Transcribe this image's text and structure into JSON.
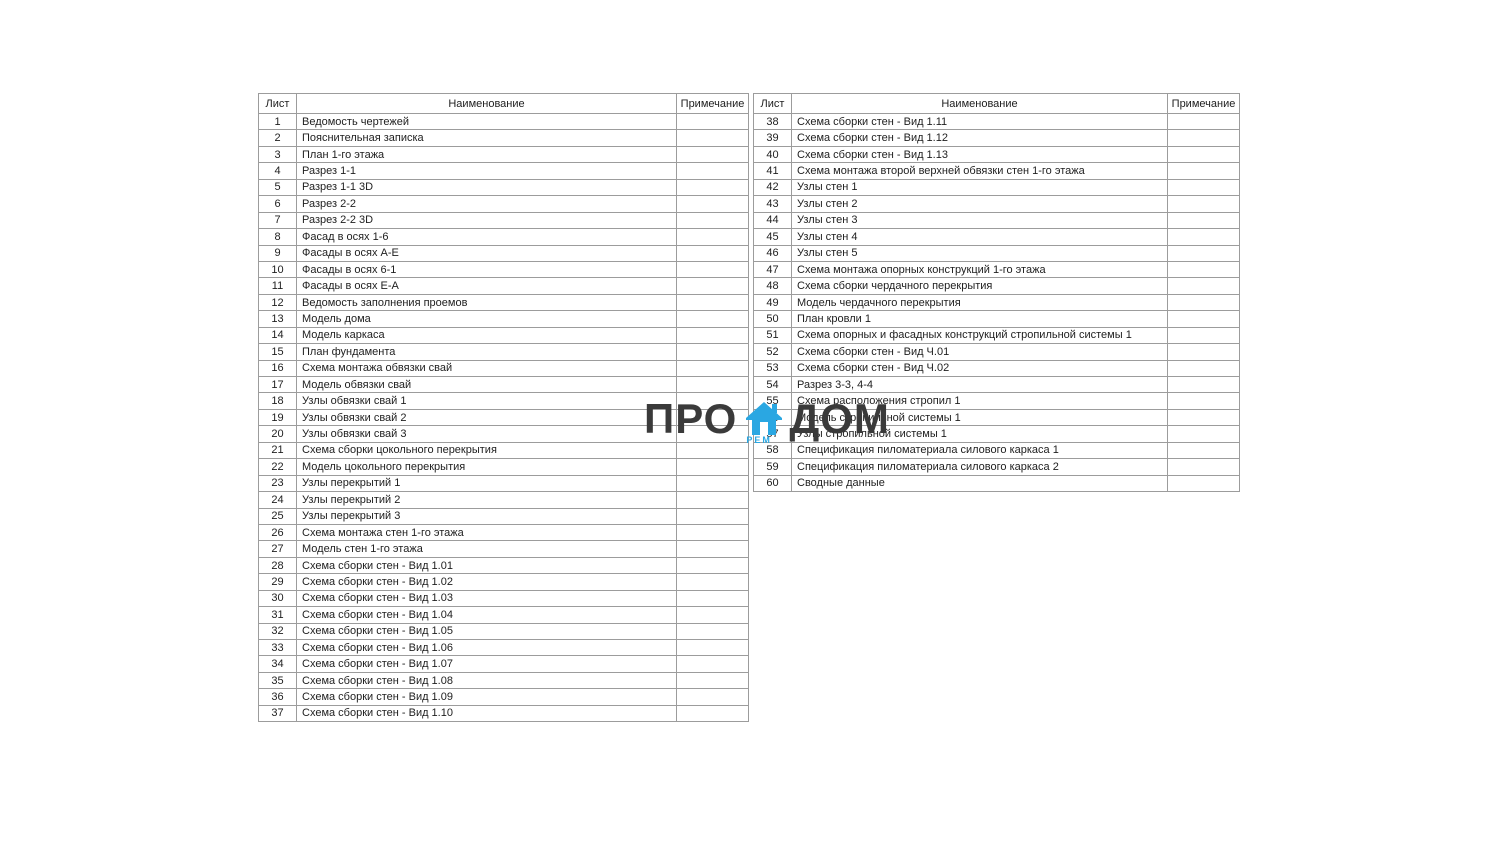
{
  "document": {
    "kind": "drawing-register",
    "background": "#ffffff",
    "border_color": "#9c9c9c",
    "text_color": "#1e1e1e"
  },
  "tables": [
    {
      "headers": [
        "Лист",
        "Наименование",
        "Примечание"
      ],
      "rows": [
        [
          "1",
          "Ведомость чертежей"
        ],
        [
          "2",
          "Пояснительная записка"
        ],
        [
          "3",
          "План 1-го этажа"
        ],
        [
          "4",
          "Разрез 1-1"
        ],
        [
          "5",
          "Разрез 1-1 3D"
        ],
        [
          "6",
          "Разрез 2-2"
        ],
        [
          "7",
          "Разрез 2-2 3D"
        ],
        [
          "8",
          "Фасад в осях 1-6"
        ],
        [
          "9",
          "Фасады в осях А-Е"
        ],
        [
          "10",
          "Фасады в осях 6-1"
        ],
        [
          "11",
          "Фасады в осях Е-А"
        ],
        [
          "12",
          "Ведомость заполнения проемов"
        ],
        [
          "13",
          "Модель дома"
        ],
        [
          "14",
          "Модель каркаса"
        ],
        [
          "15",
          "План фундамента"
        ],
        [
          "16",
          "Схема монтажа обвязки свай"
        ],
        [
          "17",
          "Модель обвязки свай"
        ],
        [
          "18",
          "Узлы обвязки свай 1"
        ],
        [
          "19",
          "Узлы обвязки свай 2"
        ],
        [
          "20",
          "Узлы обвязки свай 3"
        ],
        [
          "21",
          "Схема сборки цокольного перекрытия"
        ],
        [
          "22",
          "Модель цокольного перекрытия"
        ],
        [
          "23",
          "Узлы перекрытий 1"
        ],
        [
          "24",
          "Узлы  перекрытий 2"
        ],
        [
          "25",
          "Узлы  перекрытий 3"
        ],
        [
          "26",
          "Схема монтажа стен 1-го этажа"
        ],
        [
          "27",
          "Модель стен 1-го этажа"
        ],
        [
          "28",
          "Схема сборки стен - Вид 1.01"
        ],
        [
          "29",
          "Схема сборки стен - Вид 1.02"
        ],
        [
          "30",
          "Схема сборки стен - Вид 1.03"
        ],
        [
          "31",
          "Схема сборки стен - Вид 1.04"
        ],
        [
          "32",
          "Схема сборки стен - Вид 1.05"
        ],
        [
          "33",
          "Схема сборки стен - Вид 1.06"
        ],
        [
          "34",
          "Схема сборки стен - Вид 1.07"
        ],
        [
          "35",
          "Схема сборки стен - Вид 1.08"
        ],
        [
          "36",
          "Схема сборки стен - Вид 1.09"
        ],
        [
          "37",
          "Схема сборки стен - Вид 1.10"
        ]
      ]
    },
    {
      "headers": [
        "Лист",
        "Наименование",
        "Примечание"
      ],
      "rows": [
        [
          "38",
          "Схема сборки стен - Вид 1.11"
        ],
        [
          "39",
          "Схема сборки стен - Вид 1.12"
        ],
        [
          "40",
          "Схема сборки стен - Вид 1.13"
        ],
        [
          "41",
          "Схема монтажа второй верхней обвязки стен 1-го этажа"
        ],
        [
          "42",
          "Узлы стен 1"
        ],
        [
          "43",
          "Узлы стен 2"
        ],
        [
          "44",
          "Узлы стен 3"
        ],
        [
          "45",
          "Узлы стен 4"
        ],
        [
          "46",
          "Узлы стен 5"
        ],
        [
          "47",
          "Схема монтажа опорных конструкций 1-го этажа"
        ],
        [
          "48",
          "Схема сборки чердачного перекрытия"
        ],
        [
          "49",
          "Модель чердачного перекрытия"
        ],
        [
          "50",
          "План кровли 1"
        ],
        [
          "51",
          "Схема опорных и фасадных конструкций стропильной системы 1"
        ],
        [
          "52",
          "Схема сборки стен - Вид Ч.01"
        ],
        [
          "53",
          "Схема сборки стен - Вид Ч.02"
        ],
        [
          "54",
          "Разрез 3-3, 4-4"
        ],
        [
          "55",
          "Схема расположения стропил 1"
        ],
        [
          "56",
          "Модель стропильной системы 1"
        ],
        [
          "57",
          "Узлы стропильной системы 1"
        ],
        [
          "58",
          "Спецификация пиломатериала силового каркаса 1"
        ],
        [
          "59",
          "Спецификация пиломатериала силового каркаса 2"
        ],
        [
          "60",
          "Сводные данные"
        ]
      ]
    }
  ],
  "watermark": {
    "pro": "ПРО",
    "dom": "ДОМ",
    "rem": "РЕМ",
    "house_color": "#2aa7e2",
    "text_color": "#3a3a3a"
  }
}
